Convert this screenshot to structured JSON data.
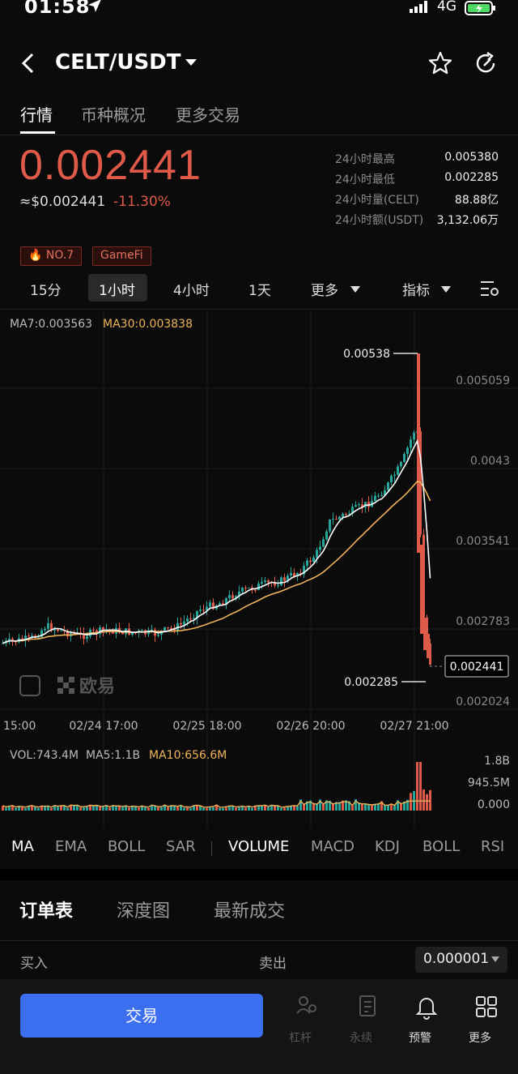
{
  "status": {
    "time": "01:58",
    "network": "4G"
  },
  "header": {
    "pair": "CELT/USDT"
  },
  "tabs": [
    "行情",
    "币种概况",
    "更多交易"
  ],
  "price": {
    "last": "0.002441",
    "usd": "≈$0.002441",
    "change": "-11.30%"
  },
  "stats": [
    {
      "label": "24小时最高",
      "value": "0.005380"
    },
    {
      "label": "24小时最低",
      "value": "0.002285"
    },
    {
      "label": "24小时量(CELT)",
      "value": "88.88亿"
    },
    {
      "label": "24小时额(USDT)",
      "value": "3,132.06万"
    }
  ],
  "tags": [
    "NO.7",
    "GameFi"
  ],
  "intervals": [
    "15分",
    "1小时",
    "4小时",
    "1天",
    "更多",
    "指标"
  ],
  "chart": {
    "ma7": "MA7:0.003563",
    "ma30": "MA30:0.003838",
    "y_labels": [
      "0.005059",
      "0.0043",
      "0.003541",
      "0.002783",
      "0.002024"
    ],
    "high_mark": "0.00538",
    "low_mark": "0.002285",
    "current": "0.002441",
    "x_labels": [
      "15:00",
      "02/24 17:00",
      "02/25 18:00",
      "02/26 20:00",
      "02/27 21:00"
    ],
    "watermark": "欧易",
    "vol": "VOL:743.4M",
    "ma5": "MA5:1.1B",
    "ma10": "MA10:656.6M",
    "vol_labels": [
      "1.8B",
      "945.5M",
      "0.000"
    ],
    "up_color": "#26a69a",
    "down_color": "#e05a4a",
    "ma7_color": "#ffffff",
    "ma30_color": "#f0b35a"
  },
  "chart_data": {
    "type": "candlestick",
    "y_range": [
      0.002024,
      0.00538
    ],
    "series": [
      {
        "name": "MA7",
        "last": 0.003563
      },
      {
        "name": "MA30",
        "last": 0.003838
      }
    ],
    "high": 0.00538,
    "low": 0.002285,
    "close": 0.002441
  },
  "indicators": [
    "MA",
    "EMA",
    "BOLL",
    "SAR",
    "VOLUME",
    "MACD",
    "KDJ",
    "BOLL",
    "RSI"
  ],
  "book_tabs": [
    "订单表",
    "深度图",
    "最新成交"
  ],
  "book": {
    "buy": "买入",
    "sell": "卖出",
    "precision": "0.000001"
  },
  "bottom": {
    "trade": "交易",
    "nav": [
      "杠杆",
      "永续",
      "预警",
      "更多"
    ]
  }
}
